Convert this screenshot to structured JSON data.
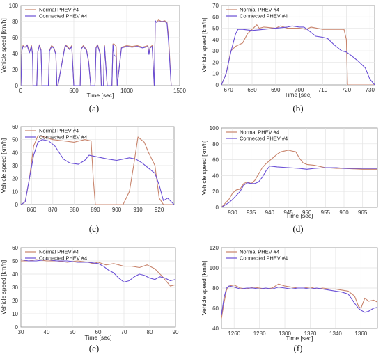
{
  "figure": {
    "panels": [
      "a",
      "b",
      "c",
      "d",
      "e",
      "f"
    ]
  },
  "chart_data": [
    {
      "panel": "(a)",
      "type": "line",
      "xlabel": "Time [sec]",
      "ylabel": "Vehicle speed [km/h]",
      "xlim": [
        0,
        1500
      ],
      "ylim": [
        0,
        100
      ],
      "xticks": [
        0,
        500,
        1000,
        1500
      ],
      "yticks": [
        0,
        20,
        40,
        60,
        80,
        100
      ],
      "grid": true,
      "legend": "top-left",
      "series": [
        {
          "name": "Normal PHEV #4",
          "color": "#c8846c",
          "x": [
            0,
            10,
            20,
            40,
            60,
            80,
            100,
            110,
            115,
            150,
            160,
            175,
            190,
            200,
            260,
            270,
            290,
            310,
            330,
            340,
            350,
            410,
            420,
            440,
            460,
            480,
            500,
            560,
            570,
            590,
            620,
            640,
            660,
            670,
            700,
            710,
            725,
            750,
            760,
            780,
            790,
            815,
            860,
            870,
            880,
            900,
            910,
            950,
            1000,
            1050,
            1100,
            1150,
            1200,
            1210,
            1220,
            1240,
            1260,
            1270,
            1280,
            1300,
            1330,
            1360,
            1380,
            1395,
            1420
          ],
          "y": [
            0,
            45,
            50,
            48,
            51,
            42,
            50,
            40,
            0,
            0,
            43,
            51,
            45,
            0,
            0,
            44,
            50,
            48,
            40,
            0,
            0,
            45,
            51,
            49,
            46,
            50,
            0,
            0,
            47,
            50,
            45,
            30,
            0,
            0,
            0,
            48,
            51,
            40,
            0,
            0,
            50,
            0,
            0,
            52,
            52,
            49,
            0,
            48,
            50,
            49,
            50,
            48,
            50,
            40,
            48,
            50,
            0,
            80,
            79,
            82,
            80,
            81,
            79,
            62,
            0
          ]
        },
        {
          "name": "Connected PHEV #4",
          "color": "#6a4fd6",
          "x": [
            0,
            10,
            20,
            40,
            60,
            80,
            100,
            110,
            115,
            150,
            160,
            175,
            190,
            200,
            260,
            270,
            290,
            310,
            330,
            340,
            350,
            410,
            420,
            440,
            460,
            480,
            500,
            560,
            570,
            590,
            620,
            640,
            660,
            670,
            700,
            710,
            725,
            750,
            760,
            780,
            790,
            815,
            860,
            870,
            880,
            900,
            910,
            950,
            1000,
            1050,
            1100,
            1150,
            1200,
            1210,
            1220,
            1240,
            1260,
            1270,
            1280,
            1300,
            1330,
            1360,
            1380,
            1395,
            1420
          ],
          "y": [
            0,
            44,
            49,
            48,
            50,
            41,
            49,
            39,
            0,
            0,
            42,
            50,
            44,
            0,
            0,
            43,
            49,
            47,
            39,
            0,
            0,
            44,
            50,
            48,
            45,
            49,
            0,
            0,
            46,
            49,
            44,
            29,
            0,
            0,
            0,
            47,
            50,
            39,
            0,
            0,
            49,
            0,
            0,
            51,
            38,
            36,
            0,
            47,
            49,
            48,
            49,
            47,
            49,
            39,
            47,
            49,
            0,
            81,
            79,
            80,
            80,
            80,
            78,
            55,
            0
          ]
        }
      ]
    },
    {
      "panel": "(b)",
      "type": "line",
      "xlabel": "Time [sec]",
      "ylabel": "Vehicle speed [km/h]",
      "xlim": [
        667,
        732
      ],
      "ylim": [
        0,
        70
      ],
      "xticks": [
        670,
        680,
        690,
        700,
        710,
        720,
        730
      ],
      "yticks": [
        0,
        10,
        20,
        30,
        40,
        50,
        60,
        70
      ],
      "grid": true,
      "legend": "top-left",
      "series": [
        {
          "name": "Normal PHEV #4",
          "color": "#c8846c",
          "x": [
            667,
            669,
            671,
            673,
            674,
            676,
            678,
            680,
            682,
            683,
            685,
            690,
            692,
            695,
            700,
            703,
            705,
            710,
            715,
            719,
            720,
            720.5,
            722,
            730,
            732
          ],
          "y": [
            0,
            10,
            30,
            34,
            35,
            37,
            45,
            49,
            53,
            50,
            51,
            50,
            52,
            50,
            50,
            49,
            51,
            49,
            49,
            49,
            40,
            0,
            0,
            0,
            0
          ]
        },
        {
          "name": "Connected PHEV #4",
          "color": "#6a4fd6",
          "x": [
            667,
            669,
            671,
            673,
            674,
            676,
            680,
            685,
            690,
            695,
            697,
            700,
            702,
            704,
            707,
            710,
            712,
            715,
            718,
            720,
            722,
            725,
            728,
            730,
            732
          ],
          "y": [
            0,
            10,
            29,
            45,
            49,
            49,
            48,
            49,
            50,
            51,
            52,
            51,
            51,
            48,
            43,
            42,
            41,
            35,
            30,
            29,
            26,
            21,
            15,
            5,
            0
          ]
        }
      ]
    },
    {
      "panel": "(c)",
      "type": "line",
      "xlabel": "",
      "ylabel": "Vehicle speed [km/h]",
      "xlim": [
        855,
        927
      ],
      "ylim": [
        0,
        60
      ],
      "xticks": [
        860,
        870,
        880,
        890,
        900,
        910,
        920
      ],
      "yticks": [
        0,
        10,
        20,
        30,
        40,
        50,
        60
      ],
      "grid": true,
      "legend": "top-left",
      "series": [
        {
          "name": "Normal PHEV #4",
          "color": "#c8846c",
          "x": [
            855,
            857,
            859,
            861,
            863,
            866,
            870,
            875,
            880,
            885,
            888,
            889,
            890,
            895,
            900,
            903,
            906,
            908,
            910,
            913,
            915,
            918,
            920,
            922,
            925,
            927
          ],
          "y": [
            0,
            2,
            20,
            45,
            53,
            52,
            50,
            49,
            48,
            50,
            49,
            20,
            0,
            0,
            0,
            0,
            10,
            30,
            52,
            48,
            40,
            30,
            5,
            0,
            0,
            0
          ]
        },
        {
          "name": "Connected PHEV #4",
          "color": "#6a4fd6",
          "x": [
            855,
            857,
            859,
            861,
            863,
            865,
            868,
            871,
            875,
            878,
            882,
            885,
            887,
            890,
            893,
            896,
            900,
            903,
            906,
            909,
            912,
            915,
            918,
            920,
            922,
            924,
            927
          ],
          "y": [
            0,
            2,
            20,
            38,
            48,
            50,
            49,
            45,
            35,
            32,
            31,
            34,
            38,
            37,
            36,
            35,
            34,
            35,
            36,
            35,
            32,
            28,
            24,
            15,
            3,
            5,
            0
          ]
        }
      ]
    },
    {
      "panel": "(d)",
      "type": "line",
      "xlabel": "Time [sec]",
      "ylabel": "Vehicle speed [km/h]",
      "xlim": [
        927,
        969
      ],
      "ylim": [
        0,
        100
      ],
      "xticks": [
        930,
        935,
        940,
        945,
        950,
        955,
        960,
        965
      ],
      "yticks": [
        0,
        20,
        40,
        60,
        80,
        100
      ],
      "grid": true,
      "legend": "top-left",
      "series": [
        {
          "name": "Normal PHEV #4",
          "color": "#c8846c",
          "x": [
            927,
            928,
            929,
            930,
            931,
            932,
            933,
            934,
            935,
            936,
            937,
            938,
            939,
            940,
            941,
            942,
            943,
            944,
            945,
            946,
            947,
            948,
            949,
            950,
            952,
            955,
            958,
            960,
            965,
            969
          ],
          "y": [
            0,
            5,
            10,
            18,
            22,
            23,
            30,
            32,
            30,
            34,
            42,
            50,
            55,
            59,
            63,
            67,
            70,
            71,
            72,
            71,
            70,
            62,
            56,
            54,
            53,
            50,
            49,
            49,
            48,
            48
          ]
        },
        {
          "name": "Connected PHEV #4",
          "color": "#6a4fd6",
          "x": [
            927,
            928,
            929,
            930,
            931,
            932,
            933,
            934,
            935,
            936,
            937,
            938,
            939,
            940,
            942,
            945,
            948,
            950,
            952,
            955,
            958,
            960,
            965,
            969
          ],
          "y": [
            0,
            3,
            6,
            10,
            15,
            20,
            28,
            31,
            30,
            30,
            32,
            38,
            46,
            52,
            51,
            50,
            49,
            48,
            49,
            50,
            50,
            49,
            49,
            49
          ]
        }
      ]
    },
    {
      "panel": "(e)",
      "type": "line",
      "xlabel": "Time [sec]",
      "ylabel": "Vehicle speed [km/h]",
      "xlim": [
        30,
        90
      ],
      "ylim": [
        0,
        60
      ],
      "xticks": [
        30,
        40,
        50,
        60,
        70,
        80,
        90
      ],
      "yticks": [
        0,
        10,
        20,
        30,
        40,
        50,
        60
      ],
      "grid": true,
      "legend": "top-left",
      "series": [
        {
          "name": "Normal PHEV #4",
          "color": "#c8846c",
          "x": [
            30,
            33,
            36,
            40,
            44,
            48,
            52,
            56,
            58,
            60,
            63,
            66,
            70,
            73,
            76,
            79,
            82,
            85,
            88,
            90
          ],
          "y": [
            50,
            50,
            51,
            50,
            50,
            49,
            50,
            49,
            48,
            49,
            47,
            48,
            46,
            46,
            45,
            47,
            44,
            38,
            31,
            32
          ]
        },
        {
          "name": "Connected PHEV #4",
          "color": "#6a4fd6",
          "x": [
            30,
            33,
            36,
            40,
            44,
            48,
            52,
            56,
            60,
            62,
            64,
            66,
            68,
            70,
            72,
            74,
            76,
            78,
            80,
            82,
            84,
            86,
            88,
            90
          ],
          "y": [
            51,
            50,
            50,
            51,
            50,
            50,
            49,
            49,
            48,
            46,
            43,
            41,
            37,
            34,
            35,
            38,
            40,
            39,
            37,
            36,
            38,
            37,
            35,
            36
          ]
        }
      ]
    },
    {
      "panel": "(f)",
      "type": "line",
      "xlabel": "Time [sec]",
      "ylabel": "Vehicle speed [km/h]",
      "xlim": [
        1250,
        1373
      ],
      "ylim": [
        40,
        120
      ],
      "xticks": [
        1260,
        1280,
        1300,
        1320,
        1340,
        1360
      ],
      "yticks": [
        40,
        60,
        80,
        100,
        120
      ],
      "grid": true,
      "legend": "top-left",
      "series": [
        {
          "name": "Normal PHEV #4",
          "color": "#c8846c",
          "x": [
            1250,
            1252,
            1254,
            1256,
            1260,
            1265,
            1270,
            1275,
            1280,
            1285,
            1290,
            1295,
            1300,
            1305,
            1310,
            1315,
            1320,
            1325,
            1330,
            1335,
            1340,
            1345,
            1350,
            1355,
            1358,
            1360,
            1363,
            1366,
            1370,
            1373
          ],
          "y": [
            50,
            65,
            78,
            82,
            83,
            80,
            79,
            81,
            80,
            79,
            80,
            84,
            82,
            81,
            80,
            80,
            81,
            79,
            80,
            79,
            79,
            78,
            77,
            72,
            62,
            60,
            70,
            67,
            68,
            66
          ]
        },
        {
          "name": "Connected PHEV #4",
          "color": "#6a4fd6",
          "x": [
            1250,
            1252,
            1254,
            1256,
            1260,
            1265,
            1270,
            1275,
            1280,
            1285,
            1290,
            1295,
            1300,
            1305,
            1310,
            1315,
            1320,
            1325,
            1330,
            1335,
            1340,
            1345,
            1350,
            1355,
            1358,
            1360,
            1363,
            1366,
            1370,
            1373
          ],
          "y": [
            53,
            70,
            80,
            82,
            81,
            79,
            80,
            80,
            79,
            80,
            79,
            81,
            80,
            79,
            80,
            80,
            79,
            80,
            79,
            78,
            77,
            76,
            74,
            65,
            60,
            58,
            56,
            57,
            60,
            61
          ]
        }
      ]
    }
  ]
}
